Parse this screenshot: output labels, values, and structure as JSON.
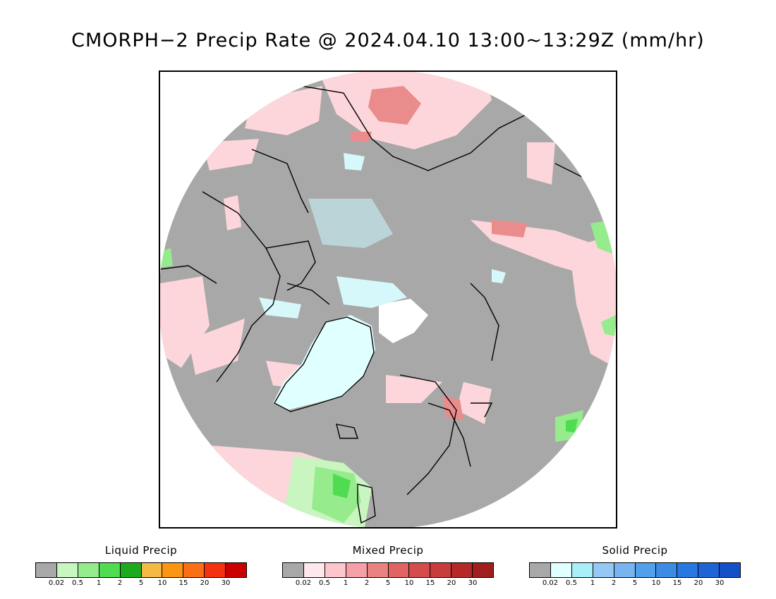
{
  "title": "CMORPH−2 Precip Rate @ 2024.04.10 13:00~13:29Z (mm/hr)",
  "legends": [
    {
      "title": "Liquid Precip",
      "colors": [
        "#a8a8a8",
        "#c8f5c0",
        "#96eb8c",
        "#50dc50",
        "#1eaa1e",
        "#f5b946",
        "#fa9614",
        "#fa6e14",
        "#f5320f",
        "#c80000"
      ],
      "ticks": [
        "0.02",
        "0.5",
        "1",
        "2",
        "5",
        "10",
        "15",
        "20",
        "30"
      ]
    },
    {
      "title": "Mixed Precip",
      "colors": [
        "#a8a8a8",
        "#ffe8ec",
        "#fcc6cc",
        "#f5a0a6",
        "#eb8282",
        "#e06464",
        "#d44c4c",
        "#c83c3c",
        "#b42828",
        "#a01e1e"
      ],
      "ticks": [
        "0.02",
        "0.5",
        "1",
        "2",
        "5",
        "10",
        "15",
        "20",
        "30"
      ]
    },
    {
      "title": "Solid Precip",
      "colors": [
        "#a8a8a8",
        "#e0ffff",
        "#aaeef8",
        "#96c8f5",
        "#78b4f0",
        "#50a0eb",
        "#3c8ce6",
        "#2878e1",
        "#1e64d7",
        "#1450c8"
      ],
      "ticks": [
        "0.02",
        "0.5",
        "1",
        "2",
        "5",
        "10",
        "15",
        "20",
        "30"
      ]
    }
  ]
}
